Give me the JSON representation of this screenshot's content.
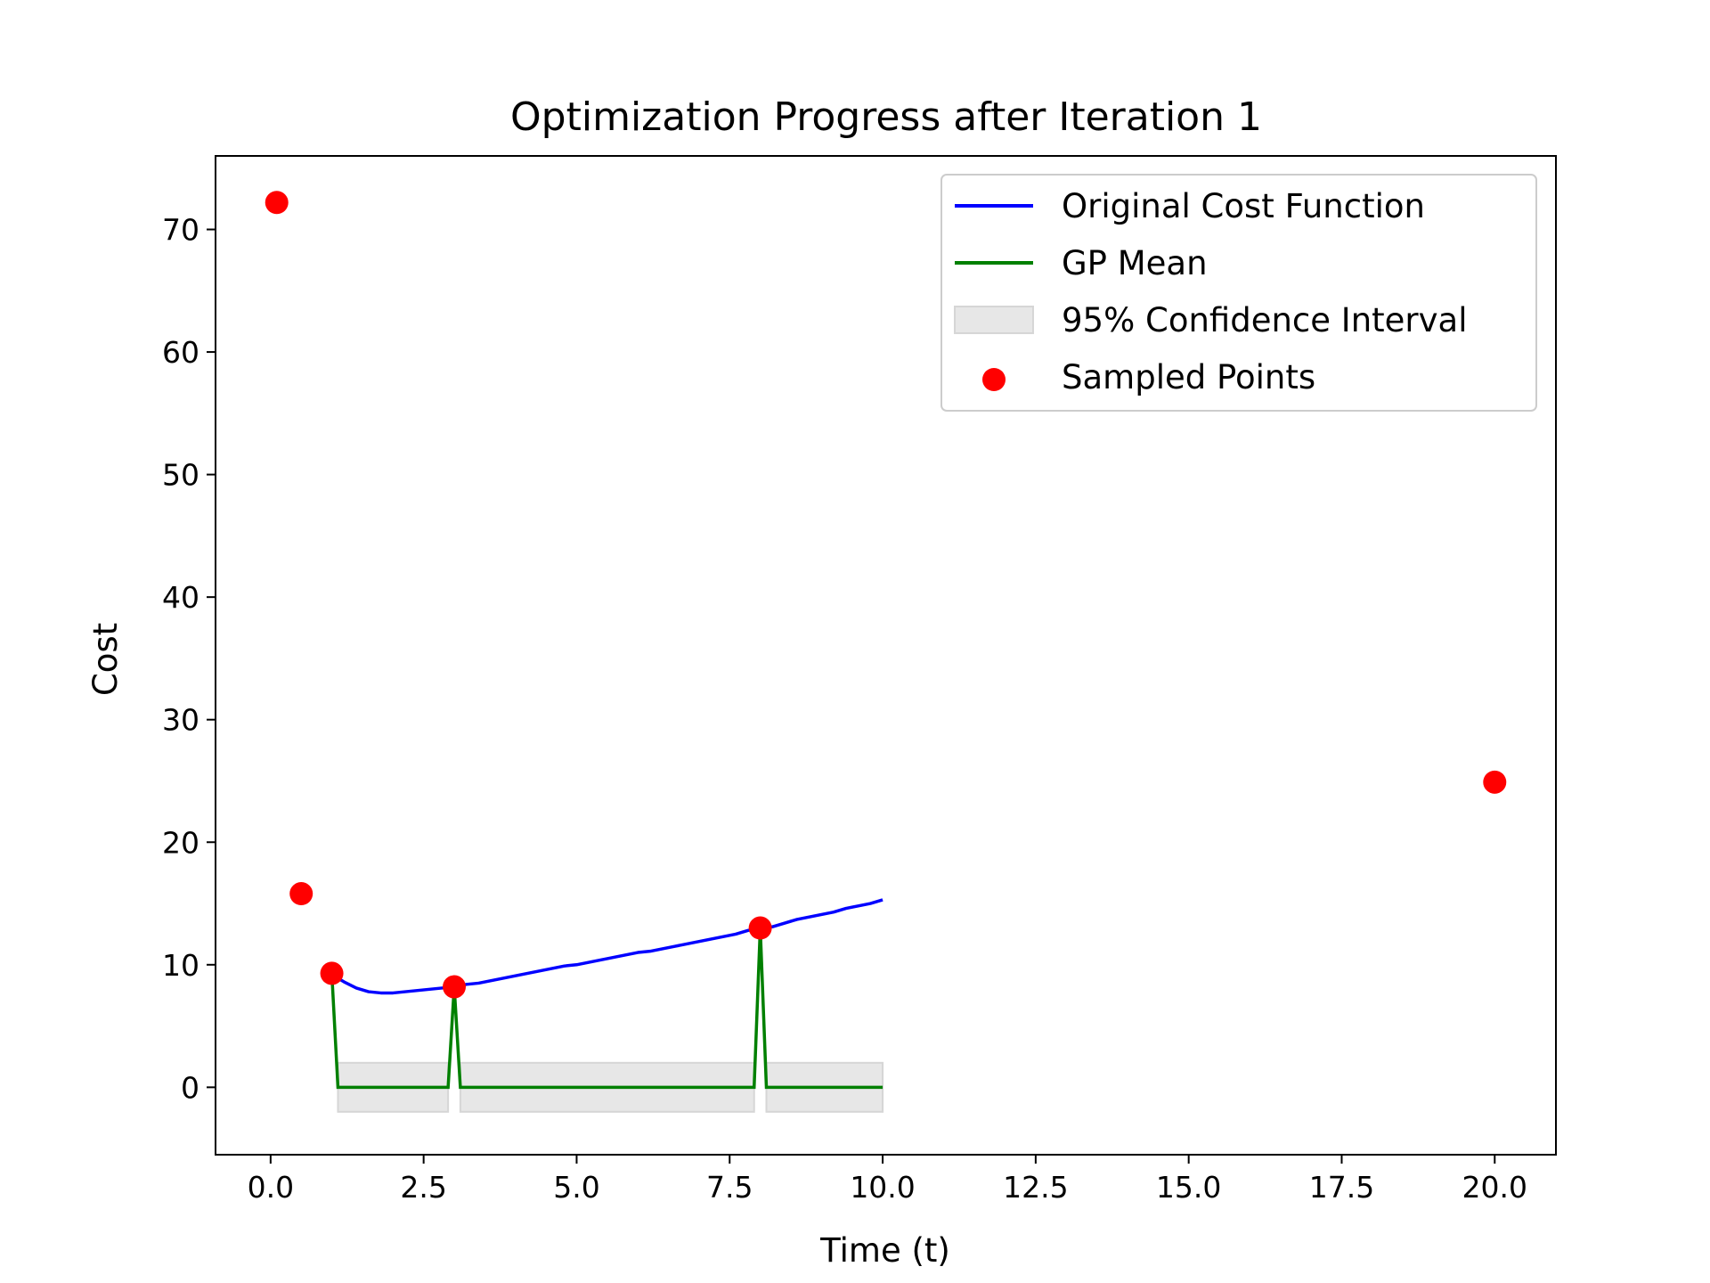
{
  "chart_data": {
    "type": "line",
    "title": "Optimization Progress after Iteration 1",
    "xlabel": "Time (t)",
    "ylabel": "Cost",
    "xlim": [
      -0.9,
      21
    ],
    "ylim": [
      -5.5,
      76
    ],
    "xticks": [
      0.0,
      2.5,
      5.0,
      7.5,
      10.0,
      12.5,
      15.0,
      17.5,
      20.0
    ],
    "xtick_labels": [
      "0.0",
      "2.5",
      "5.0",
      "7.5",
      "10.0",
      "12.5",
      "15.0",
      "17.5",
      "20.0"
    ],
    "yticks": [
      0,
      10,
      20,
      30,
      40,
      50,
      60,
      70
    ],
    "ytick_labels": [
      "0",
      "10",
      "20",
      "30",
      "40",
      "50",
      "60",
      "70"
    ],
    "grid": false,
    "legend_position": "top-right",
    "legend": {
      "original": "Original Cost Function",
      "gp_mean": "GP Mean",
      "ci": "95% Confidence Interval",
      "sampled": "Sampled Points"
    },
    "colors": {
      "original": "#0000ff",
      "gp_mean": "#008000",
      "ci": "#d3d3d3",
      "sampled": "#ff0000"
    },
    "series": [
      {
        "name": "Original Cost Function",
        "x": [
          1.0,
          1.2,
          1.4,
          1.6,
          1.8,
          2.0,
          2.2,
          2.4,
          2.6,
          2.8,
          3.0,
          3.2,
          3.4,
          3.6,
          3.8,
          4.0,
          4.2,
          4.4,
          4.6,
          4.8,
          5.0,
          5.2,
          5.4,
          5.6,
          5.8,
          6.0,
          6.2,
          6.4,
          6.6,
          6.8,
          7.0,
          7.2,
          7.4,
          7.6,
          7.8,
          8.0,
          8.2,
          8.4,
          8.6,
          8.8,
          9.0,
          9.2,
          9.4,
          9.6,
          9.8,
          10.0
        ],
        "y": [
          9.2,
          8.6,
          8.1,
          7.8,
          7.7,
          7.7,
          7.8,
          7.9,
          8.0,
          8.1,
          8.2,
          8.4,
          8.5,
          8.7,
          8.9,
          9.1,
          9.3,
          9.5,
          9.7,
          9.9,
          10.0,
          10.2,
          10.4,
          10.6,
          10.8,
          11.0,
          11.1,
          11.3,
          11.5,
          11.7,
          11.9,
          12.1,
          12.3,
          12.5,
          12.8,
          13.0,
          13.1,
          13.4,
          13.7,
          13.9,
          14.1,
          14.3,
          14.6,
          14.8,
          15.0,
          15.3
        ]
      },
      {
        "name": "GP Mean",
        "x": [
          1.0,
          1.1,
          2.9,
          3.0,
          3.1,
          7.9,
          8.0,
          8.1,
          10.0
        ],
        "y": [
          9.3,
          0.0,
          0.0,
          8.2,
          0.0,
          0.0,
          13.0,
          0.0,
          0.0
        ]
      }
    ],
    "confidence_interval": {
      "name": "95% Confidence Interval",
      "segments": [
        {
          "x_start": 1.1,
          "x_end": 2.9,
          "lower": -2.0,
          "upper": 2.0
        },
        {
          "x_start": 3.1,
          "x_end": 7.9,
          "lower": -2.0,
          "upper": 2.0
        },
        {
          "x_start": 8.1,
          "x_end": 10.0,
          "lower": -2.0,
          "upper": 2.0
        }
      ]
    },
    "sampled_points": {
      "name": "Sampled Points",
      "x": [
        0.1,
        0.5,
        1.0,
        3.0,
        8.0,
        20.0
      ],
      "y": [
        72.2,
        15.8,
        9.3,
        8.2,
        13.0,
        24.9
      ]
    }
  }
}
